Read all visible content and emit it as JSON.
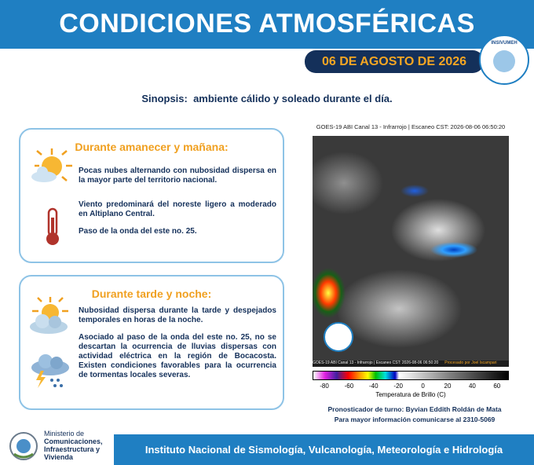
{
  "header": {
    "title": "CONDICIONES ATMOSFÉRICAS",
    "date": "06 DE AGOSTO DE 2026",
    "logo_text": "INSIVUMEH"
  },
  "synopsis": "Sinopsis:  ambiente cálido y soleado durante el día.",
  "sections": [
    {
      "heading": "Durante amanecer y mañana:",
      "paragraphs": [
        "Pocas nubes alternando con nubosidad dispersa en la mayor parte del territorio nacional.",
        "Viento predominará del noreste ligero a moderado en Altiplano Central.",
        "Paso de la onda del este no. 25."
      ]
    },
    {
      "heading": "Durante tarde y noche:",
      "paragraphs": [
        "Nubosidad dispersa durante la tarde y despejados temporales en  horas de la noche.",
        "Asociado al paso de la onda del este no. 25, no se descartan la ocurrencia de lluvias dispersas con actividad eléctrica en la región de Bocacosta. Existen condiciones favorables para la ocurrencia de tormentas locales severas."
      ]
    }
  ],
  "satellite": {
    "title": "GOES-19 ABI Canal 13 - Infrarrojo | Escaneo CST: 2026-08-06 06:50:20",
    "caption": "GOES-19 ABI Canal 13 - Infrarrojo | Escaneo CST: 2026-08-06 06:50:20",
    "credit": "Procesado por Joel Iscampari",
    "colorbar_ticks": [
      -80,
      -60,
      -40,
      -20,
      0,
      20,
      40,
      60
    ],
    "colorbar_label": "Temperatura de Brillo (C)"
  },
  "contact": {
    "forecaster": "Pronosticador de turno: Byvian Eddith Roldán de Mata",
    "info": "Para mayor información comunicarse al 2310-5069"
  },
  "footer": {
    "ministry": [
      "Ministerio de",
      "Comunicaciones,",
      "Infraestructura y",
      "Vivienda"
    ],
    "institute": "Instituto Nacional de Sismología, Vulcanología, Meteorología e Hidrología"
  }
}
